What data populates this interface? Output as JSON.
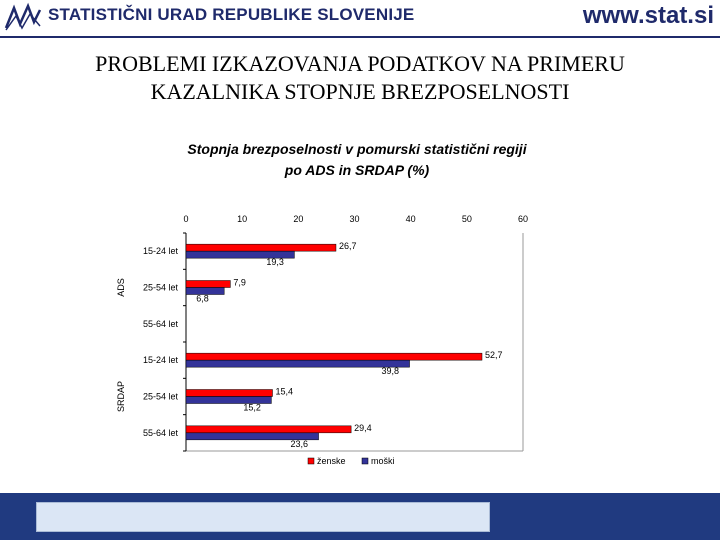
{
  "header": {
    "org_name": "STATISTIČNI URAD REPUBLIKE SLOVENIJE",
    "site": "www.stat.si",
    "logo_icon": "sors-logo-icon"
  },
  "slide": {
    "title_line1": "PROBLEMI IZKAZOVANJA PODATKOV NA PRIMERU",
    "title_line2": "KAZALNIKA STOPNJE BREZPOSELNOSTI"
  },
  "chart_data": {
    "type": "bar",
    "orientation": "horizontal",
    "title_line1": "Stopnja brezposelnosti v pomurski statistični regiji",
    "title_line2": "po ADS in SRDAP (%)",
    "xlim": [
      0,
      60
    ],
    "x_ticks": [
      0,
      10,
      20,
      30,
      40,
      50,
      60
    ],
    "x_axis_position": "top",
    "groups": [
      {
        "label": "ADS",
        "categories": [
          "15-24 let",
          "25-54 let",
          "55-64 let"
        ]
      },
      {
        "label": "SRDAP",
        "categories": [
          "15-24 let",
          "25-54 let",
          "55-64 let"
        ]
      }
    ],
    "series": [
      {
        "name": "ženske",
        "color": "#ff0000",
        "values": [
          26.7,
          7.9,
          null,
          52.7,
          15.4,
          29.4
        ],
        "labels": [
          "26,7",
          "7,9",
          "",
          "52,7",
          "15,4",
          "29,4"
        ]
      },
      {
        "name": "moški",
        "color": "#333399",
        "values": [
          19.3,
          6.8,
          null,
          39.8,
          15.2,
          23.6
        ],
        "labels": [
          "19,3",
          "6,8",
          "",
          "39,8",
          "15,2",
          "23,6"
        ]
      }
    ],
    "legend_position": "bottom",
    "grid": false
  },
  "footer": {
    "bar_color": "#203a80"
  }
}
